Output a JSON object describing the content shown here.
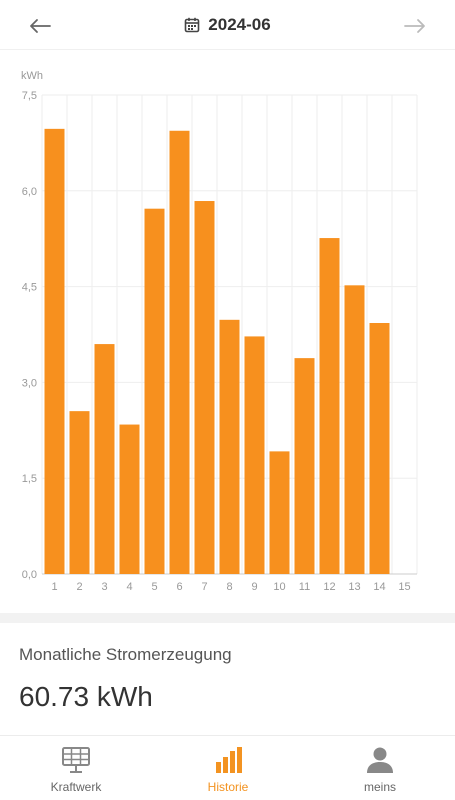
{
  "header": {
    "month": "2024-06",
    "icons": {
      "prev": "arrow-left-icon",
      "next": "arrow-right-icon",
      "calendar": "calendar-icon"
    }
  },
  "chart_data": {
    "type": "bar",
    "ylabel": "kWh",
    "ylim": [
      0,
      7.5
    ],
    "yticks": [
      "0,0",
      "1,5",
      "3,0",
      "4,5",
      "6,0",
      "7,5"
    ],
    "categories": [
      "1",
      "2",
      "3",
      "4",
      "5",
      "6",
      "7",
      "8",
      "9",
      "10",
      "11",
      "12",
      "13",
      "14",
      "15"
    ],
    "values": [
      6.97,
      2.55,
      3.6,
      2.34,
      5.72,
      6.94,
      5.84,
      3.98,
      3.72,
      1.92,
      3.38,
      5.26,
      4.52,
      3.93,
      null
    ],
    "bar_color": "#f7901e",
    "grid": true
  },
  "summary": {
    "label": "Monatliche Stromerzeugung",
    "value": "60.73 kWh"
  },
  "tabs": [
    {
      "label": "Kraftwerk",
      "icon": "solar-panel-icon",
      "active": false
    },
    {
      "label": "Historie",
      "icon": "bar-chart-icon",
      "active": true
    },
    {
      "label": "meins",
      "icon": "user-icon",
      "active": false
    }
  ],
  "colors": {
    "accent": "#f39321",
    "inactive": "#666666"
  }
}
